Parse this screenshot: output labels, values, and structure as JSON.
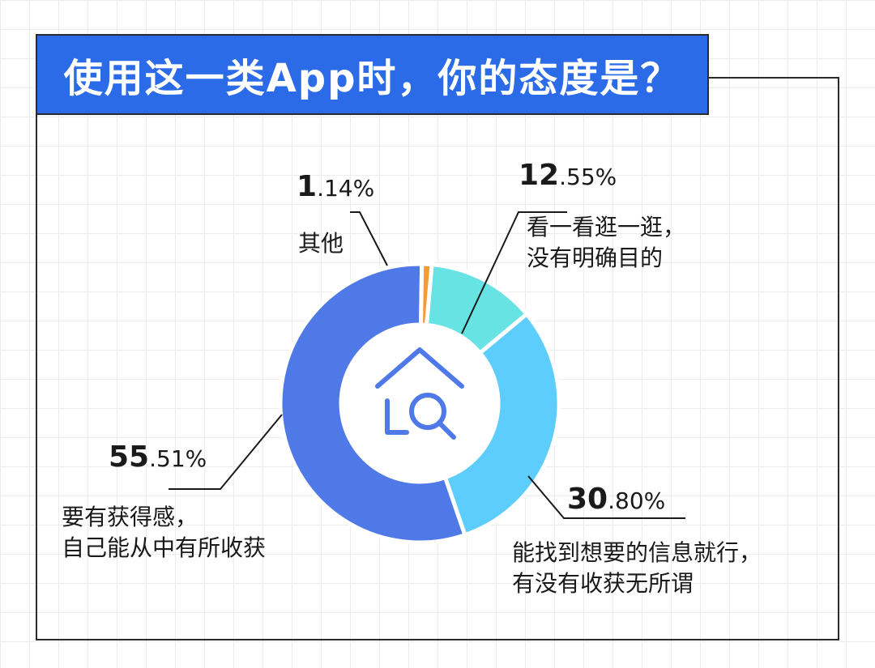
{
  "title": "使用这一类App时，你的态度是？",
  "colors": {
    "title_bg": "#2b6be8",
    "seg_55": "#5079e8",
    "seg_30": "#5ccdfc",
    "seg_12": "#67e3e3",
    "seg_1": "#f79a36",
    "icon": "#5079e8"
  },
  "center_icon": "house-search-icon",
  "chart_data": {
    "type": "pie",
    "donut": true,
    "slices": [
      {
        "key": "casual",
        "value": 12.55,
        "big": "12",
        "small": ".55%",
        "line1": "看一看逛一逛，",
        "line2": "没有明确目的",
        "color": "#67e3e3"
      },
      {
        "key": "info",
        "value": 30.8,
        "big": "30",
        "small": ".80%",
        "line1": "能找到想要的信息就行，",
        "line2": "有没有收获无所谓",
        "color": "#5ccdfc"
      },
      {
        "key": "gain",
        "value": 55.51,
        "big": "55",
        "small": ".51%",
        "line1": "要有获得感，",
        "line2": "自己能从中有所收获",
        "color": "#5079e8"
      },
      {
        "key": "other",
        "value": 1.14,
        "big": "1",
        "small": ".14%",
        "line1": "其他",
        "line2": "",
        "color": "#f79a36"
      }
    ]
  }
}
